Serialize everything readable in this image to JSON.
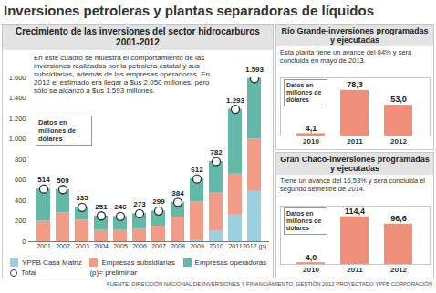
{
  "title": "Inversiones petroleras y plantas separadoras de líquidos",
  "source": "FUENTE: DIRECCIÓN NACIONAL DE INVERSIONES Y FINANCIAMIENTO, GESTIÓN 2012 PROYECTADO YPFB CORPORACIÓN",
  "chart_data": [
    {
      "type": "bar",
      "title": "Crecimiento de las inversiones del sector hidrocarburos 2001-2012",
      "subtitle": "En este cuadro se muestra el comportamiento de las inversiones realizadas por la petrolera estatal y sus subsidiarias, además de las empresas operadoras. En 2012 el estimado era llegar a $us 2.050 millones, pero sólo se alcanzó a $us 1.593 millones.",
      "units_note": "Datos en millones de dólares",
      "note": "(p)= preliminar",
      "categories": [
        "2001",
        "2002",
        "2003",
        "2004",
        "2005",
        "2006",
        "2007",
        "2008",
        "2009",
        "2010",
        "2011",
        "2012 (p)"
      ],
      "stacked": true,
      "series": [
        {
          "name": "YPFB Casa Matriz",
          "color": "#9ccfe0",
          "values": [
            0,
            0,
            0,
            0,
            0,
            0,
            0,
            0,
            10,
            100,
            260,
            490
          ]
        },
        {
          "name": "Empresas subsidiarias",
          "color": "#f19c87",
          "values": [
            200,
            280,
            210,
            110,
            110,
            120,
            150,
            240,
            380,
            380,
            400,
            510
          ]
        },
        {
          "name": "Empresas operadoras",
          "color": "#62b9a7",
          "values": [
            314,
            229,
            125,
            141,
            136,
            153,
            149,
            144,
            222,
            302,
            633,
            593
          ]
        },
        {
          "name": "Total",
          "type": "dot",
          "marker": "circle",
          "color": "#ffffff",
          "data_labels": true,
          "values": [
            514,
            509,
            335,
            251,
            246,
            273,
            299,
            384,
            612,
            782,
            1293,
            1593
          ],
          "value_labels": [
            "514",
            "509",
            "335",
            "251",
            "246",
            "273",
            "299",
            "384",
            "612",
            "782",
            "1.293",
            "1.593"
          ]
        }
      ],
      "ylim": [
        0,
        1600
      ],
      "yticks": [
        0,
        200,
        400,
        600,
        800,
        {
          "value": 1000,
          "label": "1.000"
        },
        {
          "value": 1200,
          "label": "1.200"
        },
        {
          "value": 1400,
          "label": "1.400"
        },
        {
          "value": 1600,
          "label": "1.600"
        }
      ],
      "grid": false,
      "legend": "bottom"
    },
    {
      "type": "bar",
      "title": "Río Grande-inversiones programadas y ejecutadas",
      "subtitle": "Esta planta tiene un avance del 84% y será concluida en mayo de 2013.",
      "units_note": "Datos en millones de dólares",
      "categories": [
        "2010",
        "2011",
        "2012"
      ],
      "values": [
        4.1,
        78.3,
        53.0
      ],
      "value_labels": [
        "4,1",
        "78,3",
        "53,0"
      ],
      "color": "#f0907a",
      "data_labels": true,
      "tick_labels": "x",
      "ylim": [
        0,
        100
      ]
    },
    {
      "type": "bar",
      "title": "Gran Chaco-inversiones programadas y ejecutadas",
      "subtitle": "Tiene un avance del 16,53% y será concluida el segundo semestre de 2014.",
      "units_note": "Datos en millones de dólares",
      "categories": [
        "2010",
        "2011",
        "2012"
      ],
      "values": [
        4.0,
        114.4,
        96.6
      ],
      "value_labels": [
        "4,0",
        "114,4",
        "96,6"
      ],
      "color": "#f0907a",
      "data_labels": true,
      "tick_labels": "x",
      "ylim": [
        0,
        140
      ]
    }
  ]
}
